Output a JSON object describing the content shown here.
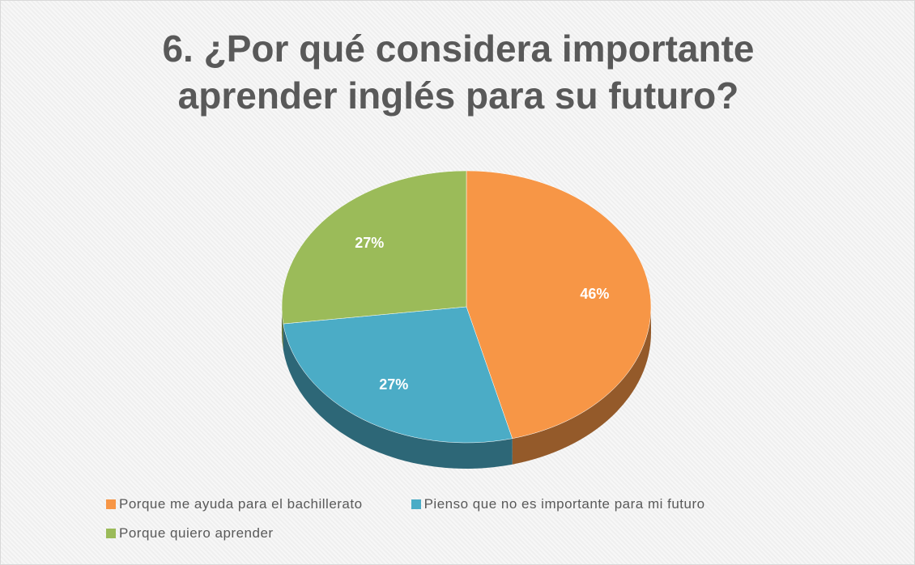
{
  "chart_data": {
    "type": "pie",
    "title": "6. ¿Por qué considera importante aprender inglés para su futuro?",
    "categories": [
      "Porque me ayuda para el bachillerato",
      "Pienso que no es importante para mi futuro",
      "Porque quiero aprender"
    ],
    "values": [
      46,
      27,
      27
    ],
    "value_labels": [
      "46%",
      "27%",
      "27%"
    ],
    "colors": [
      "#f79646",
      "#4bacc6",
      "#9bbb59"
    ]
  }
}
